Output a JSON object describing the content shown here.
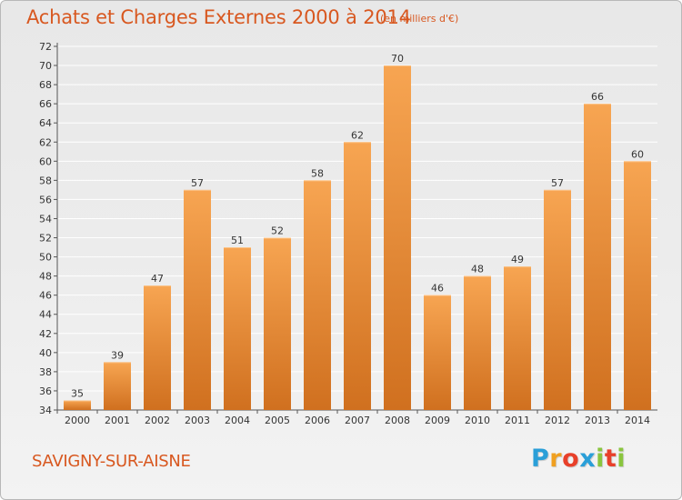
{
  "title": "Achats et Charges Externes 2000 à 2014",
  "unit_note": "(en milliers d'€)",
  "commune": "SAVIGNY-SUR-AISNE",
  "logo": {
    "letters": [
      "P",
      "r",
      "o",
      "x",
      "i",
      "t",
      "i"
    ],
    "colors": [
      "#2a9fd8",
      "#f0a020",
      "#e8402a",
      "#2a9fd8",
      "#8ac53e",
      "#e8402a",
      "#8ac53e"
    ]
  },
  "colors": {
    "bar_top": "#f7a552",
    "bar_bottom": "#d0701f",
    "title": "#d85820",
    "grid": "#ffffff"
  },
  "chart_data": {
    "type": "bar",
    "title": "Achats et Charges Externes 2000 à 2014",
    "subtitle": "(en milliers d'€)",
    "categories": [
      "2000",
      "2001",
      "2002",
      "2003",
      "2004",
      "2005",
      "2006",
      "2007",
      "2008",
      "2009",
      "2010",
      "2011",
      "2012",
      "2013",
      "2014"
    ],
    "values": [
      35,
      39,
      47,
      57,
      51,
      52,
      58,
      62,
      70,
      46,
      48,
      49,
      57,
      66,
      60
    ],
    "ylim": [
      34,
      72
    ],
    "ytick_step": 2,
    "grid": true,
    "xlabel": "",
    "ylabel": ""
  }
}
